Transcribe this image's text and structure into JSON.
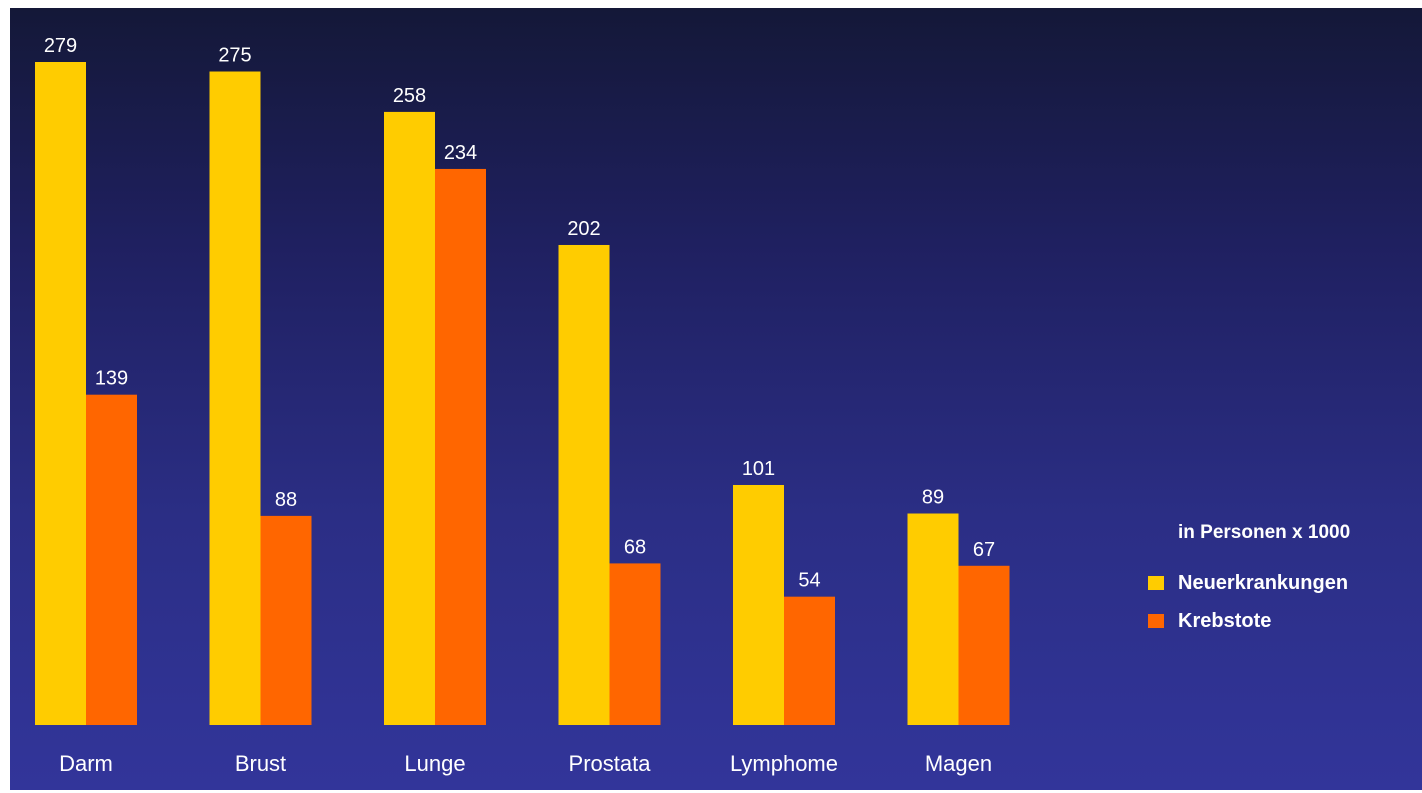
{
  "chart_data": {
    "type": "bar",
    "categories": [
      "Darm",
      "Brust",
      "Lunge",
      "Prostata",
      "Lymphome",
      "Magen"
    ],
    "series": [
      {
        "name": "Neuerkrankungen",
        "values": [
          279,
          275,
          258,
          202,
          101,
          89
        ],
        "color": "#ffcc00"
      },
      {
        "name": "Krebstote",
        "values": [
          139,
          88,
          234,
          68,
          54,
          67
        ],
        "color": "#ff6600"
      }
    ],
    "unit_note": "in Personen x 1000",
    "ylim": [
      0,
      300
    ],
    "grid": false,
    "legend_position": "right"
  }
}
